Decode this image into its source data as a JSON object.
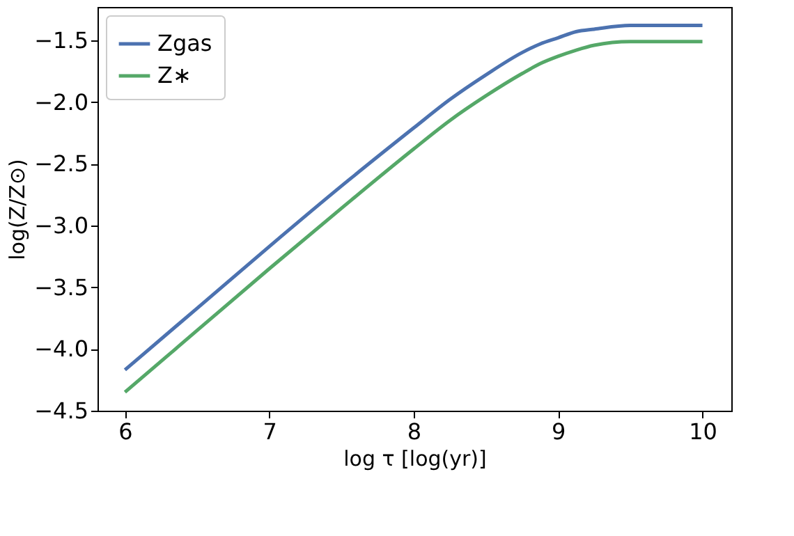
{
  "chart_data": {
    "type": "line",
    "xlabel": "log τ [log(yr)]",
    "ylabel": "log(Z/Z⊙)",
    "x": [
      6,
      6.5,
      7,
      7.5,
      8,
      8.25,
      8.5,
      8.75,
      8.875,
      9,
      9.125,
      9.25,
      9.5,
      9.75,
      10
    ],
    "series": [
      {
        "name": "Zgas",
        "color": "#4c72b0",
        "values": [
          -4.17,
          -3.67,
          -3.17,
          -2.68,
          -2.21,
          -1.98,
          -1.78,
          -1.6,
          -1.53,
          -1.48,
          -1.43,
          -1.41,
          -1.38,
          -1.38,
          -1.38
        ]
      },
      {
        "name": "Z∗",
        "color": "#55a868",
        "values": [
          -4.35,
          -3.85,
          -3.35,
          -2.86,
          -2.38,
          -2.15,
          -1.95,
          -1.77,
          -1.69,
          -1.63,
          -1.58,
          -1.54,
          -1.51,
          -1.51,
          -1.51
        ]
      }
    ],
    "xlim": [
      5.81,
      10.2
    ],
    "ylim": [
      -4.5,
      -1.23
    ],
    "xticks": [
      6,
      7,
      8,
      9,
      10
    ],
    "yticks": [
      {
        "value": -4.5,
        "label": "−4.5"
      },
      {
        "value": -4.0,
        "label": "−4.0"
      },
      {
        "value": -3.5,
        "label": "−3.5"
      },
      {
        "value": -3.0,
        "label": "−3.0"
      },
      {
        "value": -2.5,
        "label": "−2.5"
      },
      {
        "value": -2.0,
        "label": "−2.0"
      },
      {
        "value": -1.5,
        "label": "−1.5"
      }
    ],
    "grid": false,
    "legend": "top left",
    "line_style": "solid",
    "marker": "none"
  }
}
